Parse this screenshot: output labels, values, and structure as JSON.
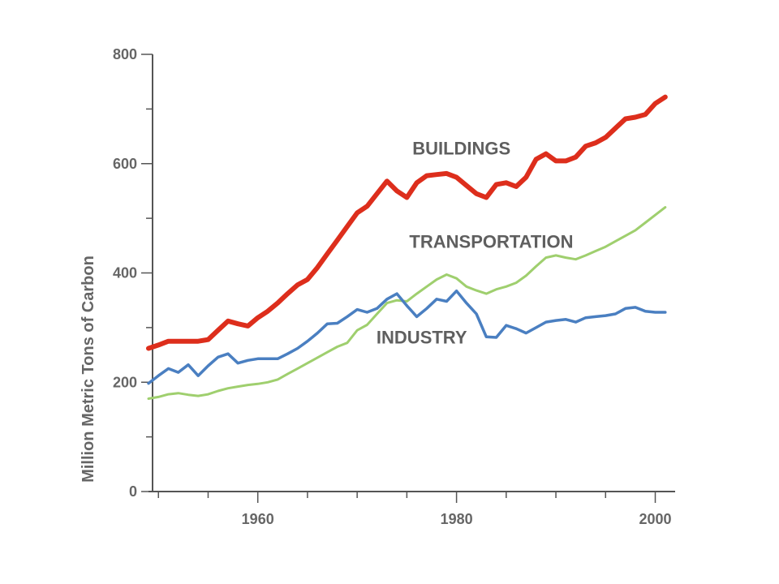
{
  "chart_data": {
    "type": "line",
    "title": "",
    "xlabel": "",
    "ylabel": "Million Metric Tons of Carbon",
    "xlim": [
      1949,
      2002
    ],
    "ylim": [
      0,
      800
    ],
    "xticks": [
      1960,
      1980,
      2000
    ],
    "xticks_minor": [
      1950,
      1955,
      1960,
      1965,
      1970,
      1975,
      1980,
      1985,
      1990,
      1995,
      2000
    ],
    "yticks": [
      0,
      200,
      400,
      600,
      800
    ],
    "yticks_minor": [
      0,
      100,
      200,
      300,
      400,
      500,
      600,
      700,
      800
    ],
    "grid": false,
    "legend": "none (series labeled directly on chart)",
    "series": [
      {
        "name": "BUILDINGS",
        "color": "#dd2e1c",
        "points": [
          [
            1949,
            262
          ],
          [
            1950,
            268
          ],
          [
            1951,
            275
          ],
          [
            1952,
            275
          ],
          [
            1953,
            275
          ],
          [
            1954,
            275
          ],
          [
            1955,
            278
          ],
          [
            1956,
            295
          ],
          [
            1957,
            312
          ],
          [
            1958,
            307
          ],
          [
            1959,
            303
          ],
          [
            1960,
            318
          ],
          [
            1961,
            330
          ],
          [
            1962,
            345
          ],
          [
            1963,
            362
          ],
          [
            1964,
            378
          ],
          [
            1965,
            388
          ],
          [
            1966,
            410
          ],
          [
            1967,
            435
          ],
          [
            1968,
            460
          ],
          [
            1969,
            485
          ],
          [
            1970,
            510
          ],
          [
            1971,
            522
          ],
          [
            1972,
            545
          ],
          [
            1973,
            568
          ],
          [
            1974,
            550
          ],
          [
            1975,
            538
          ],
          [
            1976,
            565
          ],
          [
            1977,
            578
          ],
          [
            1978,
            580
          ],
          [
            1979,
            582
          ],
          [
            1980,
            575
          ],
          [
            1981,
            560
          ],
          [
            1982,
            545
          ],
          [
            1983,
            538
          ],
          [
            1984,
            562
          ],
          [
            1985,
            565
          ],
          [
            1986,
            558
          ],
          [
            1987,
            575
          ],
          [
            1988,
            608
          ],
          [
            1989,
            618
          ],
          [
            1990,
            605
          ],
          [
            1991,
            605
          ],
          [
            1992,
            612
          ],
          [
            1993,
            632
          ],
          [
            1994,
            638
          ],
          [
            1995,
            648
          ],
          [
            1996,
            665
          ],
          [
            1997,
            682
          ],
          [
            1998,
            685
          ],
          [
            1999,
            690
          ],
          [
            2000,
            710
          ],
          [
            2001,
            722
          ]
        ]
      },
      {
        "name": "TRANSPORTATION",
        "color": "#9fcf6e",
        "points": [
          [
            1949,
            170
          ],
          [
            1950,
            173
          ],
          [
            1951,
            178
          ],
          [
            1952,
            180
          ],
          [
            1953,
            177
          ],
          [
            1954,
            175
          ],
          [
            1955,
            178
          ],
          [
            1956,
            184
          ],
          [
            1957,
            189
          ],
          [
            1958,
            192
          ],
          [
            1959,
            195
          ],
          [
            1960,
            197
          ],
          [
            1961,
            200
          ],
          [
            1962,
            205
          ],
          [
            1963,
            215
          ],
          [
            1964,
            225
          ],
          [
            1965,
            235
          ],
          [
            1966,
            245
          ],
          [
            1967,
            255
          ],
          [
            1968,
            265
          ],
          [
            1969,
            272
          ],
          [
            1970,
            295
          ],
          [
            1971,
            305
          ],
          [
            1972,
            325
          ],
          [
            1973,
            345
          ],
          [
            1974,
            350
          ],
          [
            1975,
            348
          ],
          [
            1976,
            362
          ],
          [
            1977,
            375
          ],
          [
            1978,
            388
          ],
          [
            1979,
            397
          ],
          [
            1980,
            390
          ],
          [
            1981,
            375
          ],
          [
            1982,
            368
          ],
          [
            1983,
            362
          ],
          [
            1984,
            370
          ],
          [
            1985,
            375
          ],
          [
            1986,
            382
          ],
          [
            1987,
            395
          ],
          [
            1988,
            412
          ],
          [
            1989,
            428
          ],
          [
            1990,
            432
          ],
          [
            1991,
            428
          ],
          [
            1992,
            425
          ],
          [
            1993,
            432
          ],
          [
            1994,
            440
          ],
          [
            1995,
            448
          ],
          [
            1996,
            458
          ],
          [
            1997,
            468
          ],
          [
            1998,
            478
          ],
          [
            1999,
            492
          ],
          [
            2000,
            506
          ],
          [
            2001,
            520
          ]
        ]
      },
      {
        "name": "INDUSTRY",
        "color": "#4a7fc1",
        "points": [
          [
            1949,
            198
          ],
          [
            1950,
            212
          ],
          [
            1951,
            225
          ],
          [
            1952,
            218
          ],
          [
            1953,
            232
          ],
          [
            1954,
            212
          ],
          [
            1955,
            230
          ],
          [
            1956,
            246
          ],
          [
            1957,
            252
          ],
          [
            1958,
            235
          ],
          [
            1959,
            240
          ],
          [
            1960,
            243
          ],
          [
            1961,
            243
          ],
          [
            1962,
            243
          ],
          [
            1963,
            252
          ],
          [
            1964,
            262
          ],
          [
            1965,
            275
          ],
          [
            1966,
            290
          ],
          [
            1967,
            307
          ],
          [
            1968,
            308
          ],
          [
            1969,
            320
          ],
          [
            1970,
            333
          ],
          [
            1971,
            328
          ],
          [
            1972,
            335
          ],
          [
            1973,
            352
          ],
          [
            1974,
            362
          ],
          [
            1975,
            340
          ],
          [
            1976,
            320
          ],
          [
            1977,
            335
          ],
          [
            1978,
            352
          ],
          [
            1979,
            348
          ],
          [
            1980,
            367
          ],
          [
            1981,
            345
          ],
          [
            1982,
            325
          ],
          [
            1983,
            283
          ],
          [
            1984,
            282
          ],
          [
            1985,
            304
          ],
          [
            1986,
            298
          ],
          [
            1987,
            290
          ],
          [
            1988,
            300
          ],
          [
            1989,
            310
          ],
          [
            1990,
            313
          ],
          [
            1991,
            315
          ],
          [
            1992,
            310
          ],
          [
            1993,
            318
          ],
          [
            1994,
            320
          ],
          [
            1995,
            322
          ],
          [
            1996,
            325
          ],
          [
            1997,
            335
          ],
          [
            1998,
            337
          ],
          [
            1999,
            330
          ],
          [
            2000,
            328
          ],
          [
            2001,
            328
          ]
        ]
      }
    ],
    "labels": [
      {
        "text": "BUILDINGS",
        "series": "BUILDINGS",
        "near": [
          1980.5,
          617
        ]
      },
      {
        "text": "TRANSPORTATION",
        "series": "TRANSPORTATION",
        "near": [
          1983.5,
          446
        ]
      },
      {
        "text": "INDUSTRY",
        "series": "INDUSTRY",
        "near": [
          1976.5,
          271
        ]
      }
    ]
  }
}
